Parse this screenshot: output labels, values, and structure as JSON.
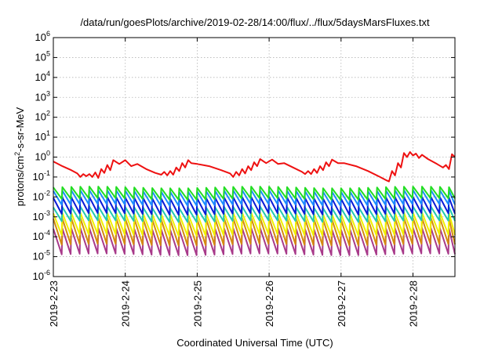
{
  "chart_data": {
    "type": "line",
    "title": "/data/run/goesPlots/archive/2019-02-28/14:00/flux/../flux/5daysMarsFluxes.txt",
    "xlabel": "Coordinated Universal Time (UTC)",
    "ylabel": "protons/cm2-s-sr-MeV",
    "yscale": "log",
    "ylim": [
      1e-06,
      1000000.0
    ],
    "xlim": [
      "2019-02-23 00:00",
      "2019-02-28 14:00"
    ],
    "x_tick_labels": [
      "2019-2-23",
      "2019-2-24",
      "2019-2-25",
      "2019-2-26",
      "2019-2-27",
      "2019-2-28"
    ],
    "y_tick_labels": [
      {
        "base": "10",
        "exp": "-6"
      },
      {
        "base": "10",
        "exp": "-5"
      },
      {
        "base": "10",
        "exp": "-4"
      },
      {
        "base": "10",
        "exp": "-3"
      },
      {
        "base": "10",
        "exp": "-2"
      },
      {
        "base": "10",
        "exp": "-1"
      },
      {
        "base": "10",
        "exp": "0"
      },
      {
        "base": "10",
        "exp": "1"
      },
      {
        "base": "10",
        "exp": "2"
      },
      {
        "base": "10",
        "exp": "3"
      },
      {
        "base": "10",
        "exp": "4"
      },
      {
        "base": "10",
        "exp": "5"
      },
      {
        "base": "10",
        "exp": "6"
      }
    ],
    "grid": true,
    "legend": "none",
    "sawtooth_period_hours": 3,
    "series": [
      {
        "color": "#ee1111",
        "points": [
          [
            "2019-02-23 00:00",
            0.6
          ],
          [
            "2019-02-23 03:00",
            0.35
          ],
          [
            "2019-02-23 06:00",
            0.22
          ],
          [
            "2019-02-23 08:00",
            0.15
          ],
          [
            "2019-02-23 09:00",
            0.1
          ],
          [
            "2019-02-23 10:00",
            0.14
          ],
          [
            "2019-02-23 11:00",
            0.11
          ],
          [
            "2019-02-23 12:00",
            0.14
          ],
          [
            "2019-02-23 13:00",
            0.1
          ],
          [
            "2019-02-23 14:00",
            0.17
          ],
          [
            "2019-02-23 15:00",
            0.09
          ],
          [
            "2019-02-23 16:00",
            0.25
          ],
          [
            "2019-02-23 17:00",
            0.16
          ],
          [
            "2019-02-23 18:00",
            0.4
          ],
          [
            "2019-02-23 19:00",
            0.22
          ],
          [
            "2019-02-23 20:00",
            0.7
          ],
          [
            "2019-02-23 22:00",
            0.45
          ],
          [
            "2019-02-24 00:00",
            0.7
          ],
          [
            "2019-02-24 02:00",
            0.35
          ],
          [
            "2019-02-24 04:00",
            0.45
          ],
          [
            "2019-02-24 07:00",
            0.25
          ],
          [
            "2019-02-24 10:00",
            0.16
          ],
          [
            "2019-02-24 12:00",
            0.13
          ],
          [
            "2019-02-24 13:00",
            0.18
          ],
          [
            "2019-02-24 14:00",
            0.12
          ],
          [
            "2019-02-24 15:00",
            0.2
          ],
          [
            "2019-02-24 16:00",
            0.13
          ],
          [
            "2019-02-24 17:00",
            0.3
          ],
          [
            "2019-02-24 18:00",
            0.2
          ],
          [
            "2019-02-24 19:00",
            0.5
          ],
          [
            "2019-02-24 20:00",
            0.3
          ],
          [
            "2019-02-24 21:00",
            0.7
          ],
          [
            "2019-02-24 22:00",
            0.5
          ],
          [
            "2019-02-25 00:00",
            0.45
          ],
          [
            "2019-02-25 04:00",
            0.35
          ],
          [
            "2019-02-25 08:00",
            0.22
          ],
          [
            "2019-02-25 11:00",
            0.15
          ],
          [
            "2019-02-25 12:00",
            0.1
          ],
          [
            "2019-02-25 13:00",
            0.18
          ],
          [
            "2019-02-25 14:00",
            0.12
          ],
          [
            "2019-02-25 15:00",
            0.25
          ],
          [
            "2019-02-25 16:00",
            0.15
          ],
          [
            "2019-02-25 17:00",
            0.35
          ],
          [
            "2019-02-25 18:00",
            0.22
          ],
          [
            "2019-02-25 19:00",
            0.55
          ],
          [
            "2019-02-25 20:00",
            0.35
          ],
          [
            "2019-02-25 21:00",
            0.8
          ],
          [
            "2019-02-25 23:00",
            0.5
          ],
          [
            "2019-02-26 01:00",
            0.75
          ],
          [
            "2019-02-26 03:00",
            0.45
          ],
          [
            "2019-02-26 05:00",
            0.5
          ],
          [
            "2019-02-26 08:00",
            0.3
          ],
          [
            "2019-02-26 11:00",
            0.18
          ],
          [
            "2019-02-26 12:00",
            0.14
          ],
          [
            "2019-02-26 13:00",
            0.2
          ],
          [
            "2019-02-26 14:00",
            0.14
          ],
          [
            "2019-02-26 15:00",
            0.25
          ],
          [
            "2019-02-26 16:00",
            0.16
          ],
          [
            "2019-02-26 17:00",
            0.35
          ],
          [
            "2019-02-26 18:00",
            0.22
          ],
          [
            "2019-02-26 19:00",
            0.55
          ],
          [
            "2019-02-26 20:00",
            0.35
          ],
          [
            "2019-02-26 21:00",
            0.75
          ],
          [
            "2019-02-26 23:00",
            0.5
          ],
          [
            "2019-02-27 01:00",
            0.5
          ],
          [
            "2019-02-27 05:00",
            0.35
          ],
          [
            "2019-02-27 09:00",
            0.2
          ],
          [
            "2019-02-27 13:00",
            0.1
          ],
          [
            "2019-02-27 15:00",
            0.07
          ],
          [
            "2019-02-27 16:00",
            0.06
          ],
          [
            "2019-02-27 17:00",
            0.2
          ],
          [
            "2019-02-27 18:00",
            0.12
          ],
          [
            "2019-02-27 19:00",
            0.5
          ],
          [
            "2019-02-27 20:00",
            0.3
          ],
          [
            "2019-02-27 21:00",
            1.6
          ],
          [
            "2019-02-27 22:00",
            1.0
          ],
          [
            "2019-02-27 23:00",
            1.8
          ],
          [
            "2019-02-28 00:00",
            1.2
          ],
          [
            "2019-02-28 01:00",
            1.5
          ],
          [
            "2019-02-28 02:00",
            0.9
          ],
          [
            "2019-02-28 03:00",
            1.3
          ],
          [
            "2019-02-28 05:00",
            0.8
          ],
          [
            "2019-02-28 08:00",
            0.45
          ],
          [
            "2019-02-28 10:00",
            0.3
          ],
          [
            "2019-02-28 11:00",
            0.4
          ],
          [
            "2019-02-28 12:00",
            0.25
          ],
          [
            "2019-02-28 13:00",
            1.4
          ],
          [
            "2019-02-28 14:00",
            1.0
          ]
        ]
      },
      {
        "color": "#22dd22",
        "peak": 0.03,
        "trough": 0.008
      },
      {
        "color": "#1a8cff",
        "peak": 0.02,
        "trough": 0.004
      },
      {
        "color": "#0a1ad6",
        "peak": 0.009,
        "trough": 0.0014
      },
      {
        "color": "#22c9b0",
        "peak": 0.003,
        "trough": 0.0006
      },
      {
        "color": "#f0f000",
        "peak": 0.0015,
        "trough": 0.00012
      },
      {
        "color": "#d48a10",
        "peak": 0.0008,
        "trough": 4e-05
      },
      {
        "color": "#a83a8a",
        "peak": 0.00025,
        "trough": 1.3e-05
      }
    ]
  }
}
